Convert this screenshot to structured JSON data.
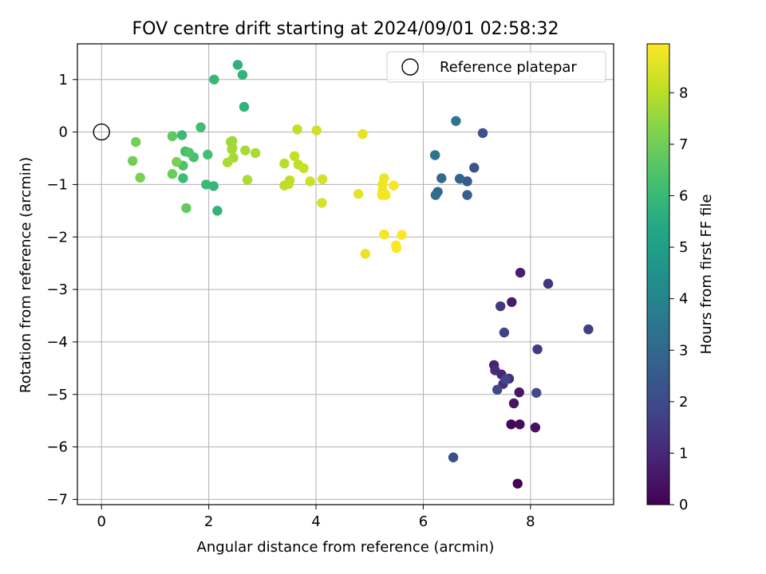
{
  "chart_data": {
    "type": "scatter",
    "title": "FOV centre drift starting at 2024/09/01 02:58:32",
    "xlabel": "Angular distance from reference (arcmin)",
    "ylabel": "Rotation from reference (arcmin)",
    "xlim": [
      -0.45,
      9.55
    ],
    "ylim": [
      -7.1,
      1.68
    ],
    "xticks": [
      0,
      2,
      4,
      6,
      8
    ],
    "yticks": [
      1,
      0,
      -1,
      -2,
      -3,
      -4,
      -5,
      -6,
      -7
    ],
    "xtick_labels": [
      "0",
      "2",
      "4",
      "6",
      "8"
    ],
    "ytick_labels": [
      "1",
      "0",
      "−1",
      "−2",
      "−3",
      "−4",
      "−5",
      "−6",
      "−7"
    ],
    "grid": true,
    "legend": {
      "placement": "top-right",
      "entries": [
        "Reference platepar"
      ]
    },
    "reference_point": {
      "x": 0,
      "y": 0
    },
    "colorbar": {
      "label": "Hours from first FF file",
      "min": 0,
      "max": 8.95,
      "ticks": [
        0,
        1,
        2,
        3,
        4,
        5,
        6,
        7,
        8
      ],
      "tick_labels": [
        "0",
        "1",
        "2",
        "3",
        "4",
        "5",
        "6",
        "7",
        "8"
      ],
      "colormap": "viridis"
    },
    "points": [
      {
        "x": 7.76,
        "y": -6.7,
        "c": 0.05
      },
      {
        "x": 7.64,
        "y": -5.57,
        "c": 0.15
      },
      {
        "x": 7.8,
        "y": -5.57,
        "c": 0.25
      },
      {
        "x": 8.09,
        "y": -5.63,
        "c": 0.35
      },
      {
        "x": 7.69,
        "y": -5.17,
        "c": 0.45
      },
      {
        "x": 7.79,
        "y": -4.96,
        "c": 0.55
      },
      {
        "x": 7.65,
        "y": -3.24,
        "c": 0.65
      },
      {
        "x": 7.81,
        "y": -2.68,
        "c": 0.75
      },
      {
        "x": 7.32,
        "y": -4.44,
        "c": 0.85
      },
      {
        "x": 7.46,
        "y": -4.62,
        "c": 0.95
      },
      {
        "x": 7.6,
        "y": -4.7,
        "c": 1.05
      },
      {
        "x": 7.34,
        "y": -4.54,
        "c": 1.15
      },
      {
        "x": 7.49,
        "y": -4.8,
        "c": 1.25
      },
      {
        "x": 8.33,
        "y": -2.89,
        "c": 1.35
      },
      {
        "x": 7.44,
        "y": -3.32,
        "c": 1.45
      },
      {
        "x": 8.13,
        "y": -4.14,
        "c": 1.55
      },
      {
        "x": 9.08,
        "y": -3.76,
        "c": 1.65
      },
      {
        "x": 7.51,
        "y": -3.82,
        "c": 1.75
      },
      {
        "x": 7.54,
        "y": -4.71,
        "c": 1.85
      },
      {
        "x": 7.38,
        "y": -4.91,
        "c": 1.95
      },
      {
        "x": 8.11,
        "y": -4.97,
        "c": 2.05
      },
      {
        "x": 6.56,
        "y": -6.2,
        "c": 2.15
      },
      {
        "x": 7.11,
        "y": -0.02,
        "c": 2.25
      },
      {
        "x": 6.95,
        "y": -0.68,
        "c": 2.4
      },
      {
        "x": 6.82,
        "y": -0.94,
        "c": 2.55
      },
      {
        "x": 6.82,
        "y": -1.2,
        "c": 2.7
      },
      {
        "x": 6.68,
        "y": -0.89,
        "c": 2.85
      },
      {
        "x": 6.27,
        "y": -1.14,
        "c": 3.0
      },
      {
        "x": 6.34,
        "y": -0.88,
        "c": 3.1
      },
      {
        "x": 6.23,
        "y": -1.2,
        "c": 3.2
      },
      {
        "x": 6.22,
        "y": -0.44,
        "c": 3.35
      },
      {
        "x": 6.61,
        "y": 0.21,
        "c": 3.5
      },
      {
        "x": 2.54,
        "y": 1.28,
        "c": 5.7
      },
      {
        "x": 2.63,
        "y": 1.09,
        "c": 5.8
      },
      {
        "x": 2.66,
        "y": 0.48,
        "c": 5.8
      },
      {
        "x": 2.16,
        "y": -1.5,
        "c": 5.85
      },
      {
        "x": 2.09,
        "y": -1.03,
        "c": 5.9
      },
      {
        "x": 2.1,
        "y": 1.0,
        "c": 5.95
      },
      {
        "x": 1.95,
        "y": -1.0,
        "c": 6.0
      },
      {
        "x": 1.5,
        "y": -0.06,
        "c": 6.05
      },
      {
        "x": 1.52,
        "y": -0.88,
        "c": 6.1
      },
      {
        "x": 1.85,
        "y": 0.09,
        "c": 6.15
      },
      {
        "x": 1.56,
        "y": -0.37,
        "c": 6.2
      },
      {
        "x": 1.98,
        "y": -0.43,
        "c": 6.25
      },
      {
        "x": 1.72,
        "y": -0.48,
        "c": 6.3
      },
      {
        "x": 1.52,
        "y": -0.64,
        "c": 6.4
      },
      {
        "x": 1.63,
        "y": -0.39,
        "c": 6.5
      },
      {
        "x": 1.32,
        "y": -0.08,
        "c": 6.7
      },
      {
        "x": 1.58,
        "y": -1.45,
        "c": 6.8
      },
      {
        "x": 1.32,
        "y": -0.8,
        "c": 6.9
      },
      {
        "x": 0.58,
        "y": -0.55,
        "c": 7.0
      },
      {
        "x": 0.64,
        "y": -0.19,
        "c": 7.05
      },
      {
        "x": 1.4,
        "y": -0.57,
        "c": 7.1
      },
      {
        "x": 0.72,
        "y": -0.87,
        "c": 7.15
      },
      {
        "x": 2.41,
        "y": -0.19,
        "c": 7.6
      },
      {
        "x": 2.44,
        "y": -0.17,
        "c": 7.65
      },
      {
        "x": 2.44,
        "y": -0.3,
        "c": 7.7
      },
      {
        "x": 2.43,
        "y": -0.33,
        "c": 7.7
      },
      {
        "x": 2.68,
        "y": -0.35,
        "c": 7.75
      },
      {
        "x": 2.46,
        "y": -0.49,
        "c": 7.75
      },
      {
        "x": 2.87,
        "y": -0.4,
        "c": 7.8
      },
      {
        "x": 2.35,
        "y": -0.58,
        "c": 7.8
      },
      {
        "x": 2.72,
        "y": -0.91,
        "c": 7.85
      },
      {
        "x": 3.41,
        "y": -0.6,
        "c": 8.0
      },
      {
        "x": 3.41,
        "y": -1.02,
        "c": 8.05
      },
      {
        "x": 3.49,
        "y": -0.99,
        "c": 8.05
      },
      {
        "x": 3.51,
        "y": -0.92,
        "c": 8.1
      },
      {
        "x": 3.67,
        "y": -0.62,
        "c": 8.1
      },
      {
        "x": 3.6,
        "y": -0.46,
        "c": 8.15
      },
      {
        "x": 3.65,
        "y": 0.05,
        "c": 8.15
      },
      {
        "x": 3.77,
        "y": -0.69,
        "c": 8.2
      },
      {
        "x": 3.89,
        "y": -0.94,
        "c": 8.25
      },
      {
        "x": 4.01,
        "y": 0.03,
        "c": 8.3
      },
      {
        "x": 4.11,
        "y": -1.35,
        "c": 8.35
      },
      {
        "x": 4.12,
        "y": -0.9,
        "c": 8.35
      },
      {
        "x": 4.79,
        "y": -1.18,
        "c": 8.6
      },
      {
        "x": 4.87,
        "y": -0.04,
        "c": 8.6
      },
      {
        "x": 4.92,
        "y": -2.32,
        "c": 8.65
      },
      {
        "x": 5.27,
        "y": -0.88,
        "c": 8.7
      },
      {
        "x": 5.24,
        "y": -1.0,
        "c": 8.75
      },
      {
        "x": 5.24,
        "y": -1.12,
        "c": 8.75
      },
      {
        "x": 5.23,
        "y": -1.2,
        "c": 8.8
      },
      {
        "x": 5.3,
        "y": -1.2,
        "c": 8.8
      },
      {
        "x": 5.45,
        "y": -1.02,
        "c": 8.85
      },
      {
        "x": 5.27,
        "y": -1.95,
        "c": 8.85
      },
      {
        "x": 5.49,
        "y": -2.16,
        "c": 8.9
      },
      {
        "x": 5.5,
        "y": -2.21,
        "c": 8.9
      },
      {
        "x": 5.6,
        "y": -1.96,
        "c": 8.92
      }
    ]
  }
}
